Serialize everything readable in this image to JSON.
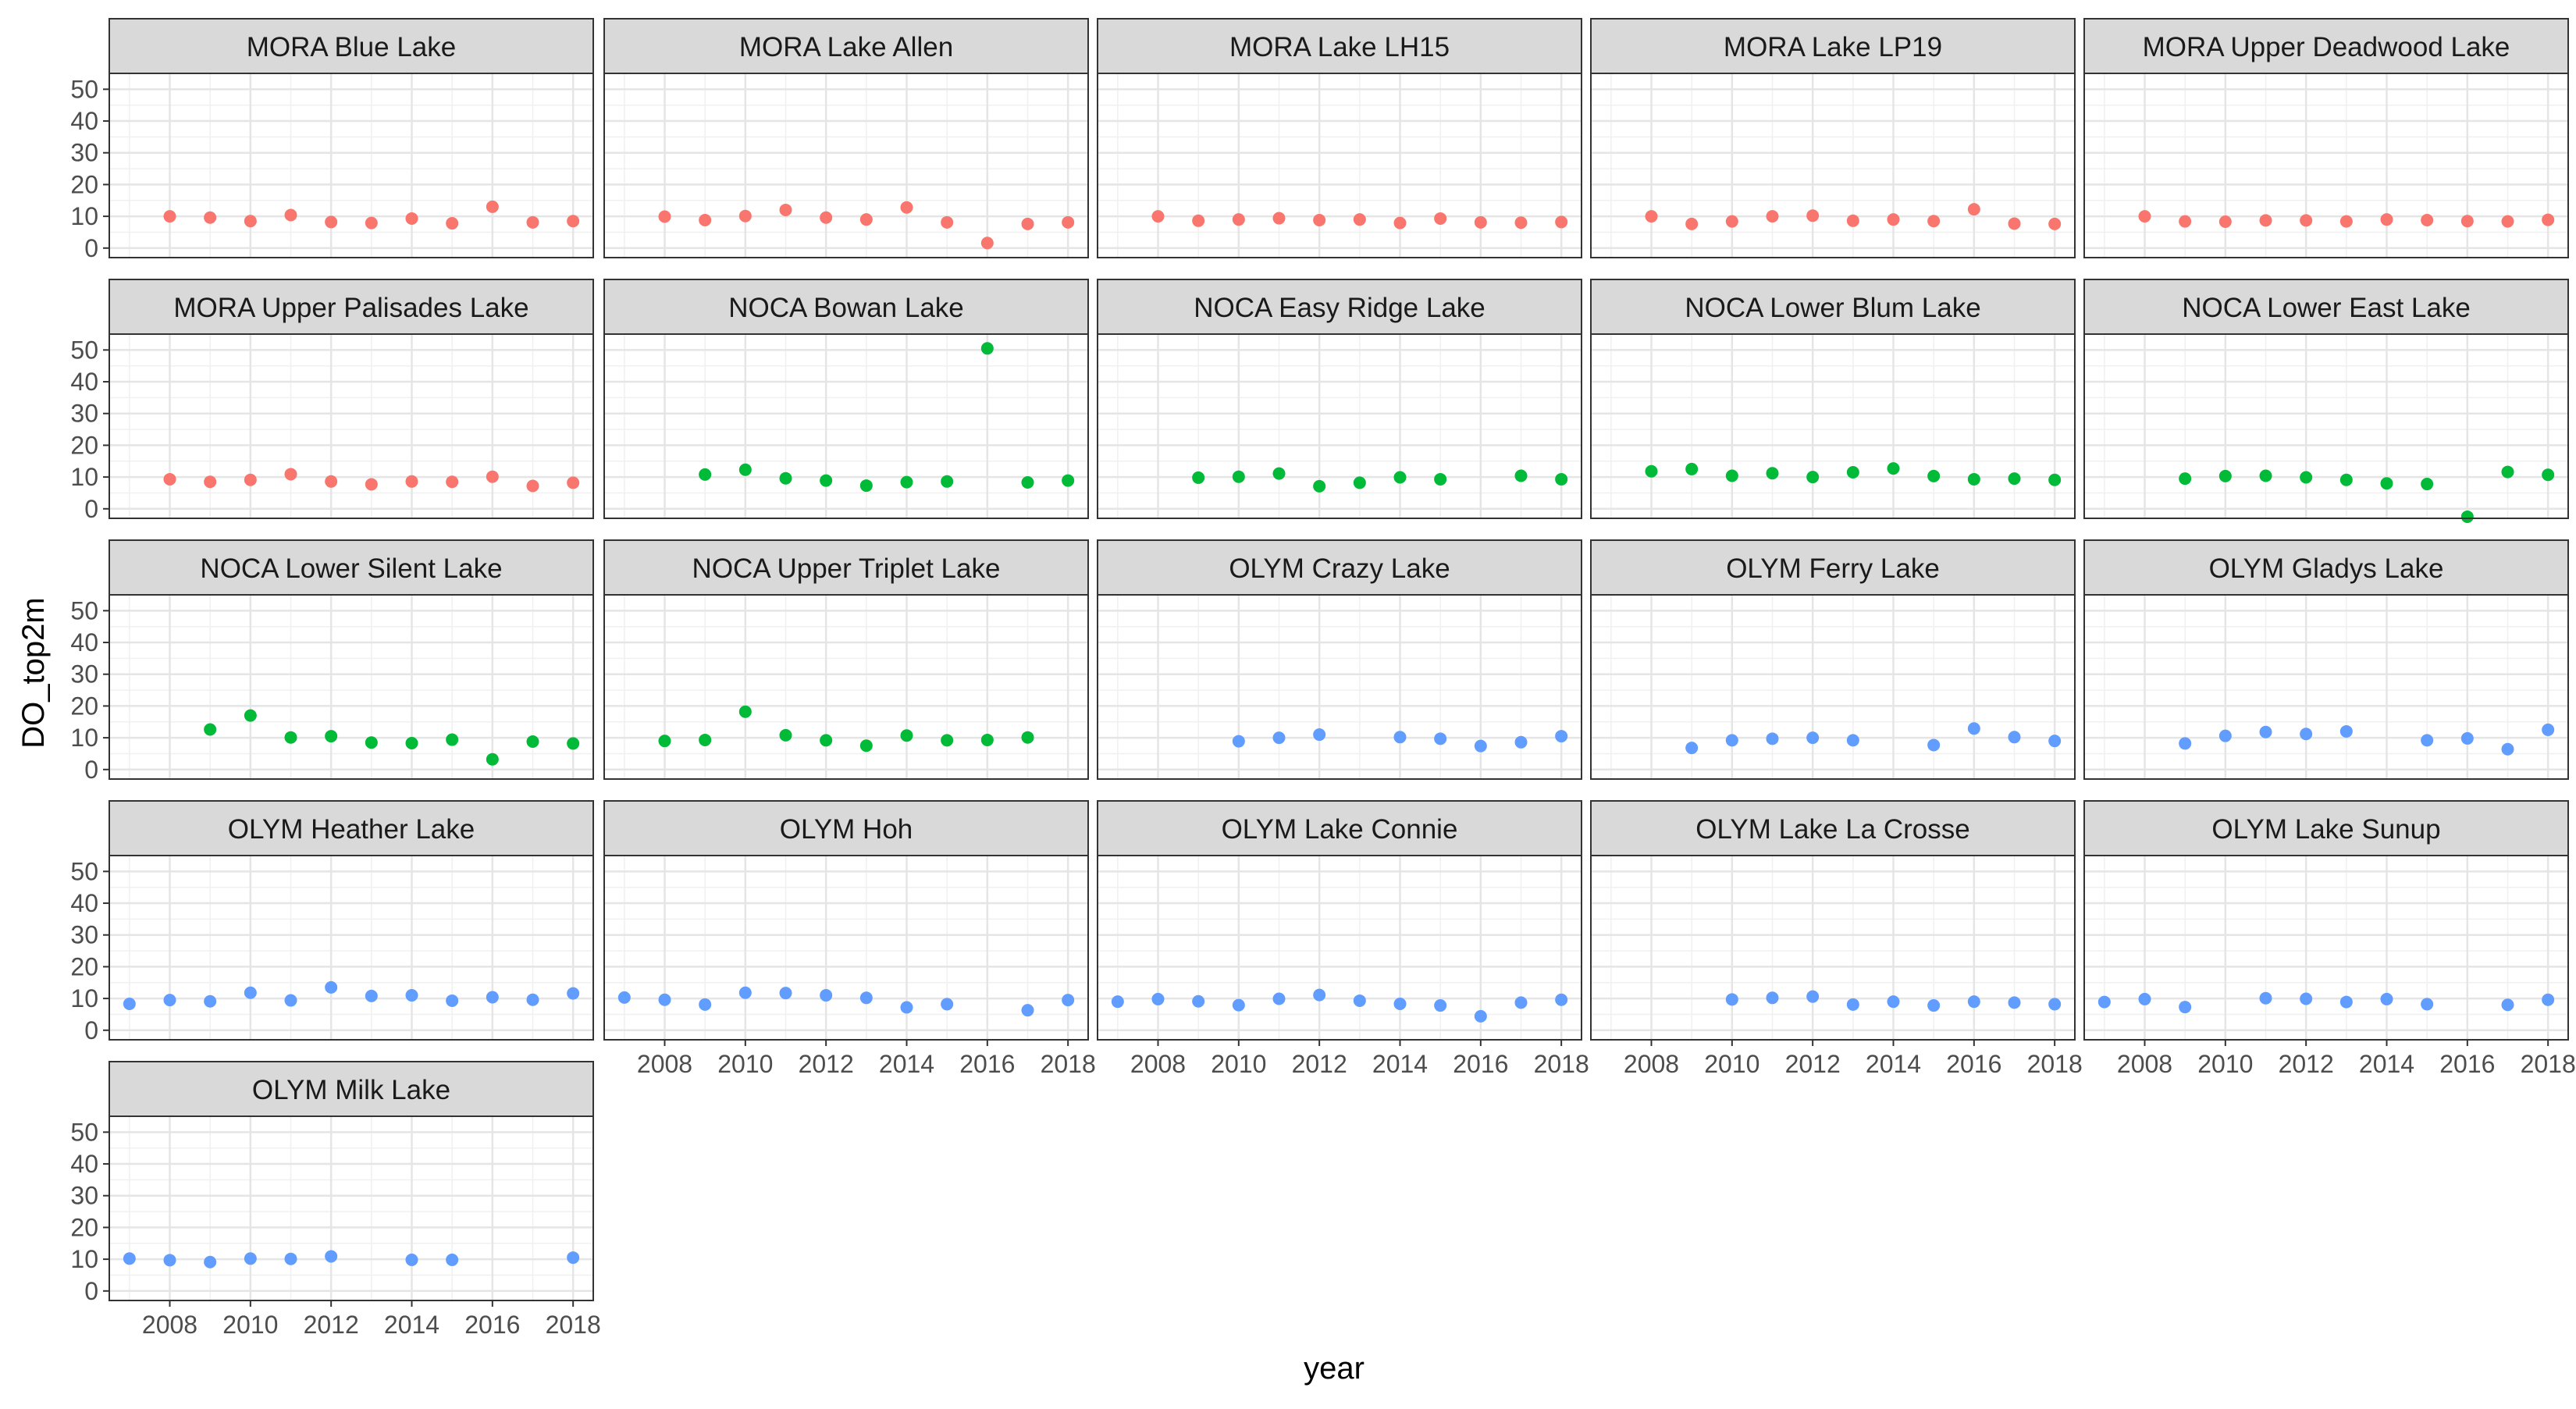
{
  "chart_data": {
    "type": "scatter",
    "facet": "small-multiples",
    "xlabel": "year",
    "ylabel": "DO_top2m",
    "xlim": [
      2006.5,
      2018.5
    ],
    "ylim": [
      -3,
      55
    ],
    "xticks": [
      2008,
      2010,
      2012,
      2014,
      2016,
      2018
    ],
    "yticks": [
      0,
      10,
      20,
      30,
      40,
      50
    ],
    "grid": true,
    "legend": "none",
    "park_colors": {
      "MORA": "#F8766D",
      "NOCA": "#00BA38",
      "OLYM": "#619CFF"
    },
    "panels": [
      {
        "title": "MORA Blue Lake",
        "park": "MORA",
        "x": [
          2008,
          2009,
          2010,
          2011,
          2012,
          2013,
          2014,
          2015,
          2016,
          2017,
          2018
        ],
        "y": [
          10.0,
          9.6,
          8.5,
          10.4,
          8.2,
          7.9,
          9.3,
          7.8,
          13.0,
          8.1,
          8.5
        ]
      },
      {
        "title": "MORA Lake Allen",
        "park": "MORA",
        "x": [
          2008,
          2009,
          2010,
          2011,
          2012,
          2013,
          2014,
          2015,
          2016,
          2017,
          2018
        ],
        "y": [
          9.9,
          8.8,
          10.1,
          12.0,
          9.6,
          9.0,
          12.8,
          8.1,
          1.6,
          7.6,
          8.1
        ]
      },
      {
        "title": "MORA Lake LH15",
        "park": "MORA",
        "x": [
          2008,
          2009,
          2010,
          2011,
          2012,
          2013,
          2014,
          2015,
          2016,
          2017,
          2018
        ],
        "y": [
          10.0,
          8.6,
          9.0,
          9.4,
          8.8,
          9.0,
          7.9,
          9.3,
          8.1,
          8.0,
          8.2
        ]
      },
      {
        "title": "MORA Lake LP19",
        "park": "MORA",
        "x": [
          2008,
          2009,
          2010,
          2011,
          2012,
          2013,
          2014,
          2015,
          2016,
          2017,
          2018
        ],
        "y": [
          10.0,
          7.6,
          8.4,
          10.0,
          10.2,
          8.6,
          9.0,
          8.5,
          12.2,
          7.7,
          7.6
        ]
      },
      {
        "title": "MORA Upper Deadwood Lake",
        "park": "MORA",
        "x": [
          2008,
          2009,
          2010,
          2011,
          2012,
          2013,
          2014,
          2015,
          2016,
          2017,
          2018
        ],
        "y": [
          10.0,
          8.4,
          8.3,
          8.7,
          8.7,
          8.4,
          9.0,
          8.8,
          8.5,
          8.4,
          8.9
        ]
      },
      {
        "title": "MORA Upper Palisades Lake",
        "park": "MORA",
        "x": [
          2008,
          2009,
          2010,
          2011,
          2012,
          2013,
          2014,
          2015,
          2016,
          2017,
          2018
        ],
        "y": [
          9.3,
          8.5,
          9.1,
          10.9,
          8.6,
          7.7,
          8.6,
          8.5,
          10.1,
          7.2,
          8.2
        ]
      },
      {
        "title": "NOCA Bowan Lake",
        "park": "NOCA",
        "x": [
          2009,
          2010,
          2011,
          2012,
          2013,
          2014,
          2015,
          2016,
          2017,
          2018
        ],
        "y": [
          10.8,
          12.3,
          9.6,
          8.9,
          7.3,
          8.4,
          8.6,
          50.5,
          8.3,
          8.9
        ]
      },
      {
        "title": "NOCA Easy Ridge Lake",
        "park": "NOCA",
        "x": [
          2009,
          2010,
          2011,
          2012,
          2013,
          2014,
          2015,
          2017,
          2018
        ],
        "y": [
          9.8,
          10.1,
          11.1,
          7.1,
          8.2,
          9.9,
          9.3,
          10.4,
          9.3
        ]
      },
      {
        "title": "NOCA Lower Blum Lake",
        "park": "NOCA",
        "x": [
          2008,
          2009,
          2010,
          2011,
          2012,
          2013,
          2014,
          2015,
          2016,
          2017,
          2018
        ],
        "y": [
          11.8,
          12.5,
          10.4,
          11.2,
          10.0,
          11.5,
          12.7,
          10.3,
          9.3,
          9.5,
          9.1
        ]
      },
      {
        "title": "NOCA Lower East Lake",
        "park": "NOCA",
        "x": [
          2009,
          2010,
          2011,
          2012,
          2013,
          2014,
          2015,
          2016,
          2017,
          2018
        ],
        "y": [
          9.5,
          10.3,
          10.4,
          9.9,
          9.1,
          8.0,
          7.8,
          -2.5,
          11.6,
          10.7
        ]
      },
      {
        "title": "NOCA Lower Silent Lake",
        "park": "NOCA",
        "x": [
          2009,
          2010,
          2011,
          2012,
          2013,
          2014,
          2015,
          2016,
          2017,
          2018
        ],
        "y": [
          12.6,
          17.0,
          10.1,
          10.5,
          8.5,
          8.3,
          9.4,
          3.2,
          8.8,
          8.2
        ]
      },
      {
        "title": "NOCA Upper Triplet Lake",
        "park": "NOCA",
        "x": [
          2008,
          2009,
          2010,
          2011,
          2012,
          2013,
          2014,
          2015,
          2016,
          2017
        ],
        "y": [
          9.0,
          9.3,
          18.2,
          10.8,
          9.2,
          7.5,
          10.7,
          9.2,
          9.3,
          10.1
        ]
      },
      {
        "title": "OLYM Crazy Lake",
        "park": "OLYM",
        "x": [
          2010,
          2011,
          2012,
          2014,
          2015,
          2016,
          2017,
          2018
        ],
        "y": [
          8.9,
          10.0,
          11.0,
          10.2,
          9.7,
          7.4,
          8.6,
          10.5
        ]
      },
      {
        "title": "OLYM Ferry Lake",
        "park": "OLYM",
        "x": [
          2009,
          2010,
          2011,
          2012,
          2013,
          2015,
          2016,
          2017,
          2018
        ],
        "y": [
          6.8,
          9.2,
          9.7,
          10.0,
          9.2,
          7.7,
          12.9,
          10.2,
          9.0
        ]
      },
      {
        "title": "OLYM Gladys Lake",
        "park": "OLYM",
        "x": [
          2009,
          2010,
          2011,
          2012,
          2013,
          2015,
          2016,
          2017,
          2018
        ],
        "y": [
          8.2,
          10.6,
          11.8,
          11.2,
          12.0,
          9.2,
          9.8,
          6.4,
          12.5
        ]
      },
      {
        "title": "OLYM Heather Lake",
        "park": "OLYM",
        "x": [
          2007,
          2008,
          2009,
          2010,
          2011,
          2012,
          2013,
          2014,
          2015,
          2016,
          2017,
          2018
        ],
        "y": [
          8.3,
          9.5,
          9.1,
          11.8,
          9.4,
          13.5,
          10.8,
          11.0,
          9.3,
          10.4,
          9.6,
          11.6
        ]
      },
      {
        "title": "OLYM Hoh",
        "park": "OLYM",
        "x": [
          2007,
          2008,
          2009,
          2010,
          2011,
          2012,
          2013,
          2014,
          2015,
          2017,
          2018
        ],
        "y": [
          10.3,
          9.6,
          8.1,
          11.8,
          11.7,
          11.0,
          10.2,
          7.2,
          8.2,
          6.3,
          9.5
        ]
      },
      {
        "title": "OLYM Lake Connie",
        "park": "OLYM",
        "x": [
          2007,
          2008,
          2009,
          2010,
          2011,
          2012,
          2013,
          2014,
          2015,
          2016,
          2017,
          2018
        ],
        "y": [
          9.0,
          9.8,
          9.1,
          7.9,
          9.9,
          11.1,
          9.3,
          8.3,
          7.8,
          4.4,
          8.7,
          9.6
        ]
      },
      {
        "title": "OLYM Lake La Crosse",
        "park": "OLYM",
        "x": [
          2010,
          2011,
          2012,
          2013,
          2014,
          2015,
          2016,
          2017,
          2018
        ],
        "y": [
          9.7,
          10.2,
          10.6,
          8.1,
          9.0,
          7.8,
          9.0,
          8.7,
          8.2
        ]
      },
      {
        "title": "OLYM Lake Sunup",
        "park": "OLYM",
        "x": [
          2007,
          2008,
          2009,
          2011,
          2012,
          2013,
          2014,
          2015,
          2017,
          2018
        ],
        "y": [
          8.9,
          9.8,
          7.3,
          10.1,
          9.9,
          8.9,
          9.8,
          8.2,
          8.0,
          9.6
        ]
      },
      {
        "title": "OLYM Milk Lake",
        "park": "OLYM",
        "x": [
          2007,
          2008,
          2009,
          2010,
          2011,
          2012,
          2014,
          2015,
          2018
        ],
        "y": [
          10.2,
          9.7,
          9.1,
          10.2,
          10.1,
          10.9,
          9.8,
          9.8,
          10.5
        ]
      }
    ]
  }
}
